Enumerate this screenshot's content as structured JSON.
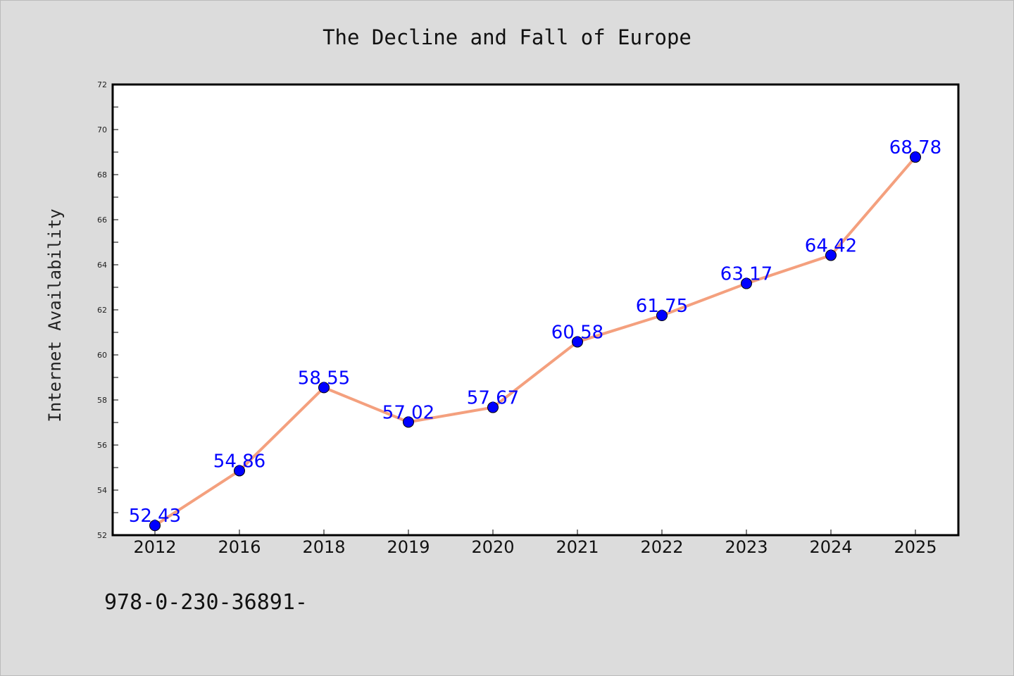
{
  "chart_data": {
    "type": "line",
    "title": "The Decline and Fall of Europe",
    "xlabel": "",
    "ylabel": "Internet Availability",
    "categories": [
      "2012",
      "2016",
      "2018",
      "2019",
      "2020",
      "2021",
      "2022",
      "2023",
      "2024",
      "2025"
    ],
    "series": [
      {
        "values": [
          52.43,
          54.86,
          58.55,
          57.02,
          57.67,
          60.58,
          61.75,
          63.17,
          64.42,
          68.78
        ]
      }
    ],
    "data_labels": [
      "52.43",
      "54.86",
      "58.55",
      "57.02",
      "57.67",
      "60.58",
      "61.75",
      "63.17",
      "64.42",
      "68.78"
    ],
    "ylim": [
      52,
      72
    ],
    "yticks": [
      "52",
      "54",
      "56",
      "58",
      "60",
      "62",
      "64",
      "66",
      "68",
      "70",
      "72"
    ],
    "grid": false,
    "legend": "none",
    "colors": {
      "line": "#f4a07e",
      "marker": "#0000ff",
      "label": "#0000ff",
      "background": "#dcdcdc",
      "plot_bg": "#ffffff"
    }
  },
  "footer": {
    "text": "978-0-230-36891-"
  }
}
